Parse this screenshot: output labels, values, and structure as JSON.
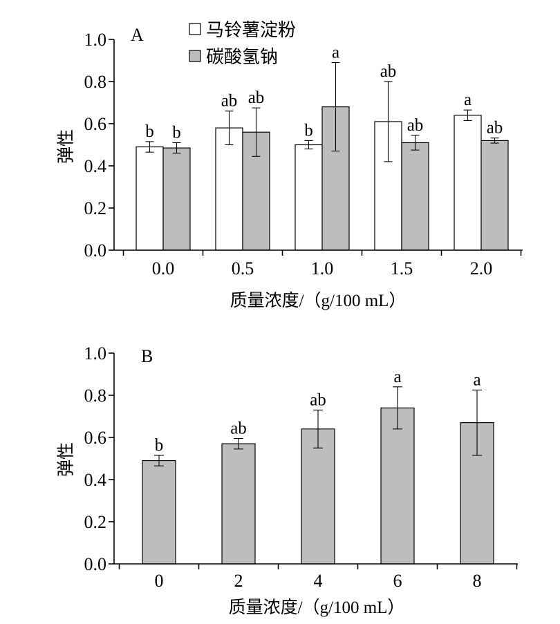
{
  "chart_data": [
    {
      "panel": "A",
      "type": "bar",
      "categories": [
        "0.0",
        "0.5",
        "1.0",
        "1.5",
        "2.0"
      ],
      "xlabel": "质量浓度/（g/100 mL）",
      "ylabel": "弹性",
      "ylim": [
        0,
        1.0
      ],
      "yticks": [
        "0.0",
        "0.2",
        "0.4",
        "0.6",
        "0.8",
        "1.0"
      ],
      "grid": false,
      "legend_position": "top",
      "series": [
        {
          "name": "马铃薯淀粉",
          "color": "#ffffff",
          "values": [
            0.49,
            0.58,
            0.5,
            0.61,
            0.64
          ],
          "errors": [
            0.025,
            0.08,
            0.02,
            0.19,
            0.025
          ],
          "labels": [
            "b",
            "ab",
            "b",
            "ab",
            "a"
          ]
        },
        {
          "name": "碳酸氢钠",
          "color": "#bdbdbd",
          "values": [
            0.485,
            0.56,
            0.68,
            0.51,
            0.52
          ],
          "errors": [
            0.025,
            0.115,
            0.21,
            0.035,
            0.012
          ],
          "labels": [
            "b",
            "ab",
            "a",
            "ab",
            "ab"
          ]
        }
      ]
    },
    {
      "panel": "B",
      "type": "bar",
      "categories": [
        "0",
        "2",
        "4",
        "6",
        "8"
      ],
      "xlabel": "质量浓度/（g/100 mL）",
      "ylabel": "弹性",
      "ylim": [
        0,
        1.0
      ],
      "yticks": [
        "0.0",
        "0.2",
        "0.4",
        "0.6",
        "0.8",
        "1.0"
      ],
      "grid": false,
      "series": [
        {
          "color": "#bdbdbd",
          "values": [
            0.49,
            0.57,
            0.64,
            0.74,
            0.67
          ],
          "errors": [
            0.025,
            0.025,
            0.09,
            0.1,
            0.155
          ],
          "labels": [
            "b",
            "ab",
            "ab",
            "a",
            "a"
          ]
        }
      ]
    }
  ]
}
